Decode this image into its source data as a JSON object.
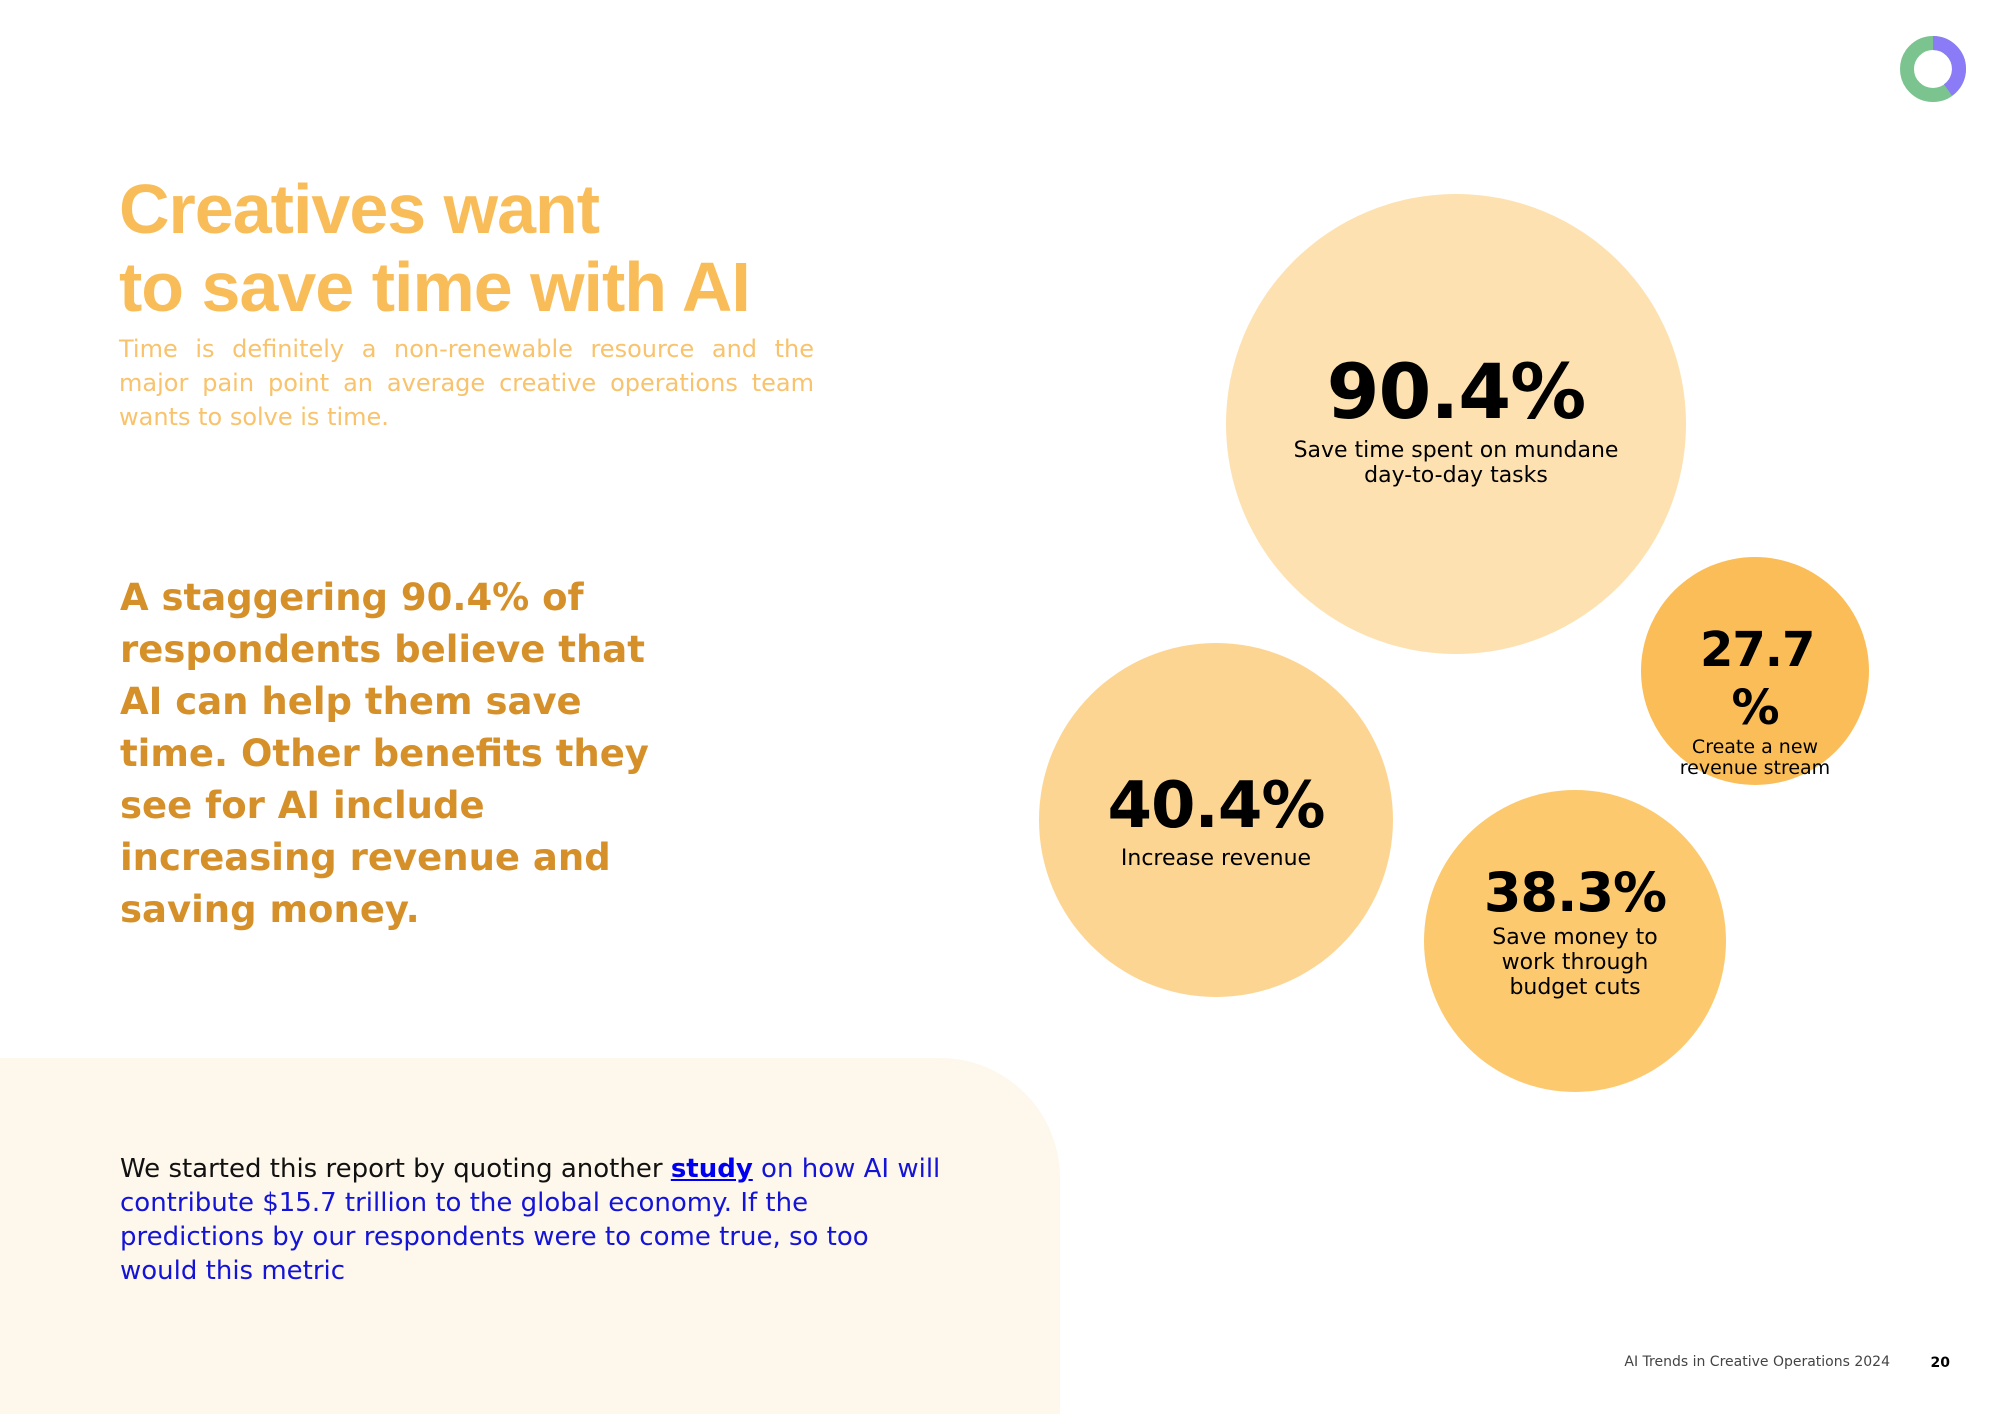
{
  "colors": {
    "title": "#f8bd59",
    "subtitle": "#f8c36c",
    "highlight": "#d5902a",
    "panel": "#fef7ec",
    "link": "#0000ee",
    "bubble_1": "#fde1b0",
    "bubble_2": "#fdd592",
    "bubble_3": "#fbbd57",
    "bubble_4": "#fcc96f",
    "logo_green": "#7bc48f",
    "logo_purple": "#8b7bf6"
  },
  "logo": {
    "icon": "ring-logo-icon"
  },
  "title": {
    "line1": "Creatives want",
    "line2": "to save time with AI"
  },
  "subtitle": "Time is definitely a non-renewable resource and the major pain point an average creative operations team wants to solve is time.",
  "highlight": "A staggering 90.4% of respondents believe that AI can help them save time. Other benefits they see for AI include increasing revenue and saving money.",
  "stats": [
    {
      "value": "90.4%",
      "label": "Save time spent on mundane day-to-day tasks"
    },
    {
      "value": "40.4%",
      "label": "Increase revenue"
    },
    {
      "value": "27.7 %",
      "label": "Create a new revenue stream"
    },
    {
      "value": "38.3%",
      "label": "Save money to work through budget cuts"
    }
  ],
  "note": {
    "prefix": "We started this report by quoting another ",
    "link": "study",
    "suffix": " on how AI will contribute $15.7 trillion to the global economy. If the predictions by our respondents were to come true, so too would this metric"
  },
  "footer": {
    "title": "AI Trends in Creative Operations 2024",
    "page": "20"
  }
}
